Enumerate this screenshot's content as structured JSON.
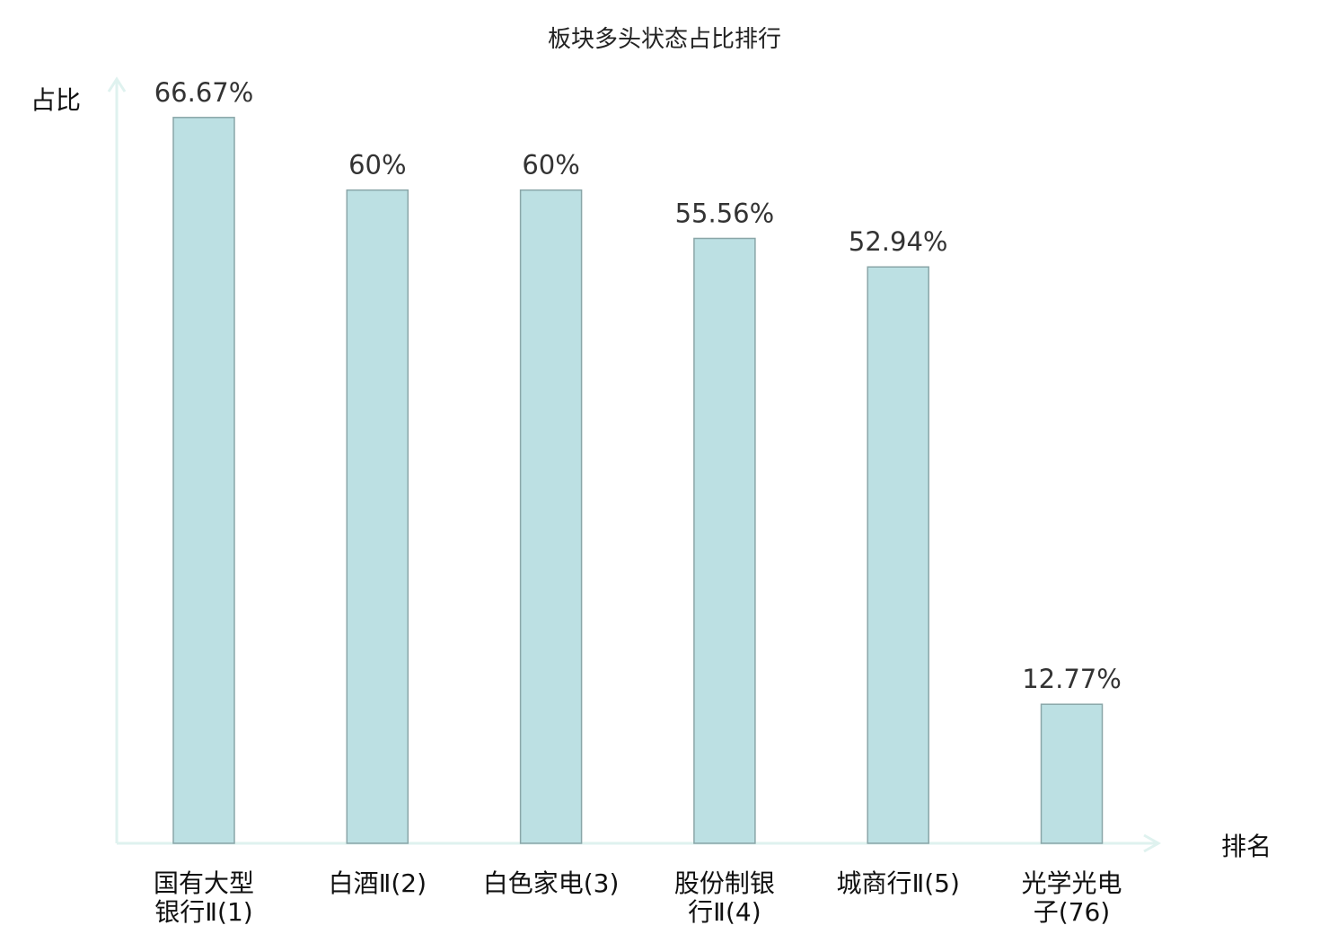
{
  "chart_data": {
    "type": "bar",
    "title": "板块多头状态占比排行",
    "xlabel": "排名",
    "ylabel": "占比",
    "categories": [
      [
        "国有大型",
        "银行Ⅱ(1)"
      ],
      [
        "白酒Ⅱ(2)"
      ],
      [
        "白色家电(3)"
      ],
      [
        "股份制银",
        "行Ⅱ(4)"
      ],
      [
        "城商行Ⅱ(5)"
      ],
      [
        "光学光电",
        "子(76)"
      ]
    ],
    "values": [
      66.67,
      60,
      60,
      55.56,
      52.94,
      12.77
    ],
    "value_labels": [
      "66.67%",
      "60%",
      "60%",
      "55.56%",
      "52.94%",
      "12.77%"
    ],
    "highlight_category_index": 5,
    "ylim": [
      0,
      70.2
    ],
    "grid": false,
    "colors": {
      "bar_fill": "#bce0e3",
      "bar_stroke": "#8aa6a8",
      "axis": "#dff2ef",
      "highlight_label": "#ee0000",
      "label": "#111111",
      "value_label": "#333333"
    }
  }
}
